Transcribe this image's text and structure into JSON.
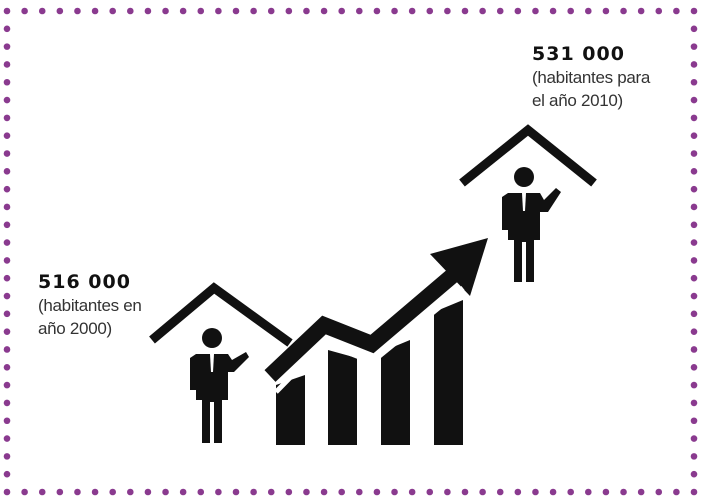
{
  "left_label": {
    "value": "516 000",
    "line1": "(habitantes en",
    "line2": "año 2000)"
  },
  "right_label": {
    "value": "531 000",
    "line1": "(habitantes para",
    "line2": "el año 2010)"
  },
  "colors": {
    "border_dots": "#8a3a8f",
    "ink": "#111111",
    "text": "#333333",
    "background": "#ffffff"
  },
  "icons": [
    "dotted-border",
    "house-roof-icon",
    "person-icon",
    "bar-chart-icon",
    "rising-arrow-icon"
  ]
}
